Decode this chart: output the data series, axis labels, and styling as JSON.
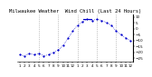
{
  "title": "Milwaukee Weather  Wind Chill (Last 24 Hours)",
  "x_labels": [
    "1",
    "",
    "1",
    "",
    "1",
    "",
    "1",
    "",
    "1",
    "",
    "1",
    "",
    "1",
    "",
    "1",
    "",
    "1",
    "",
    "1",
    "",
    "1",
    "",
    "1",
    "",
    "1"
  ],
  "x_labels_real": [
    "1",
    "2",
    "3",
    "4",
    "5",
    "6",
    "7",
    "8",
    "9",
    "10",
    "11",
    "12",
    "1",
    "2",
    "3",
    "4",
    "5",
    "6",
    "7",
    "8",
    "9",
    "10",
    "11",
    "12"
  ],
  "hours": [
    0,
    1,
    2,
    3,
    4,
    5,
    6,
    7,
    8,
    9,
    10,
    11,
    12,
    13,
    14,
    15,
    16,
    17,
    18,
    19,
    20,
    21,
    22,
    23
  ],
  "values": [
    -22,
    -23,
    -21,
    -22,
    -21,
    -23,
    -22,
    -20,
    -18,
    -14,
    -8,
    -2,
    3,
    6,
    8,
    7,
    8,
    7,
    5,
    3,
    -2,
    -5,
    -8,
    -10
  ],
  "line_color": "#0000cc",
  "markersize": 1.2,
  "ylim": [
    -28,
    12
  ],
  "yticks": [
    10,
    5,
    0,
    -5,
    -10,
    -15,
    -20,
    -25
  ],
  "grid_color": "#999999",
  "bg_color": "#ffffff",
  "title_fontsize": 4.0,
  "tick_fontsize": 3.0,
  "grid_x_positions": [
    4,
    8,
    12,
    16,
    20
  ]
}
